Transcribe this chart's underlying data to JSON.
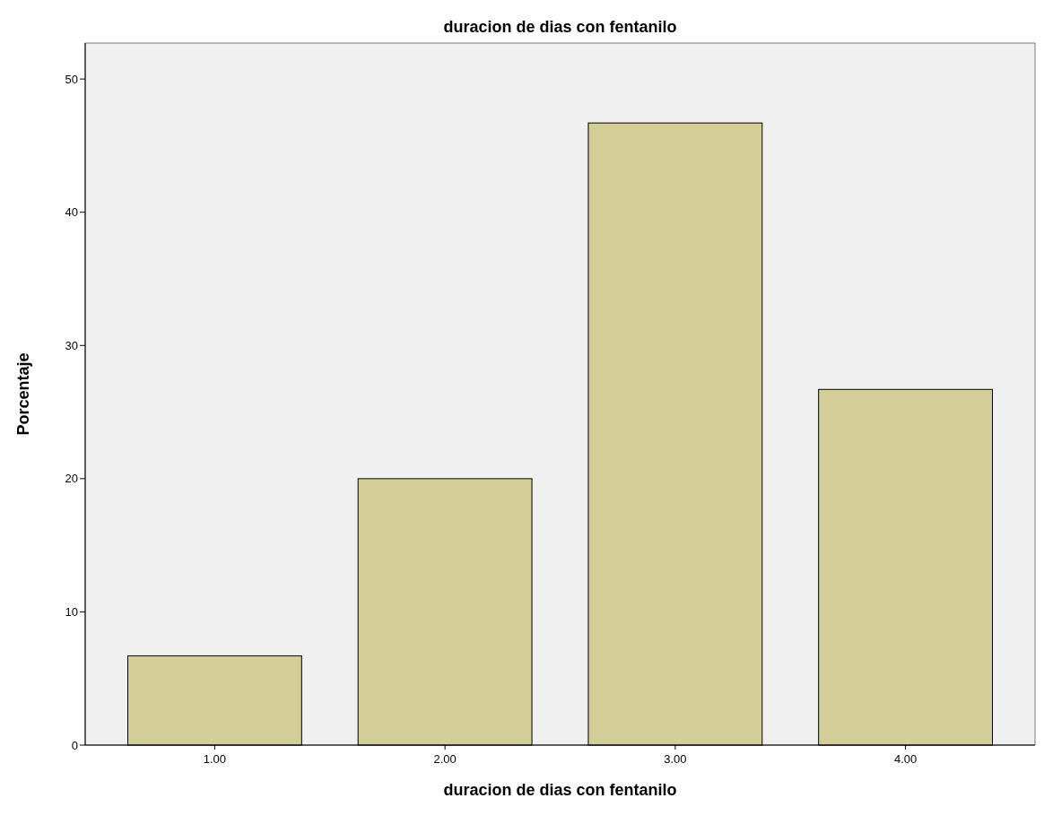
{
  "chart_data": {
    "type": "bar",
    "title": "duracion de dias con fentanilo",
    "xlabel": "duracion de dias con fentanilo",
    "ylabel": "Porcentaje",
    "categories": [
      "1.00",
      "2.00",
      "3.00",
      "4.00"
    ],
    "values": [
      6.7,
      20,
      46.7,
      26.7
    ],
    "color": "#d3cd97",
    "ylim": [
      0,
      52.7
    ],
    "yticks": [
      0,
      10,
      20,
      30,
      40,
      50
    ],
    "grid": false
  }
}
